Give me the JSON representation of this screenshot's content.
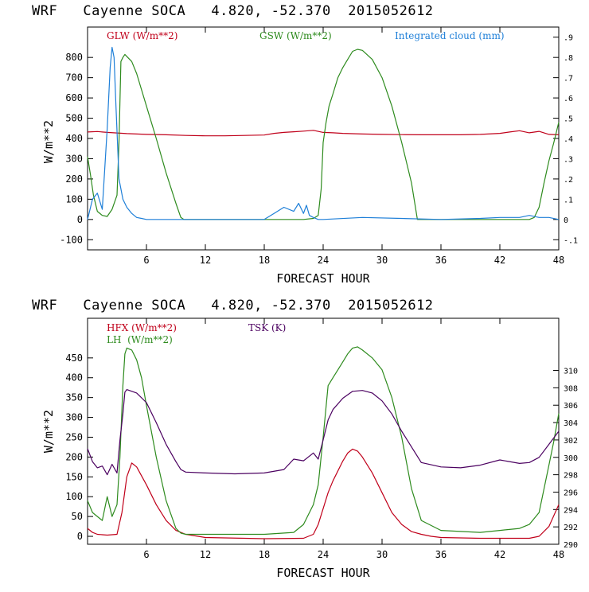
{
  "panels": [
    {
      "title": "WRF   Cayenne SOCA   4.820, -52.370  2015052612",
      "xlabel": "FORECAST HOUR",
      "ylabel": "W/m**2",
      "legend": [
        {
          "label": "GLW (W/m**2)",
          "color": "#c0001a"
        },
        {
          "label": "GSW (W/m**2)",
          "color": "#2e8b1e"
        },
        {
          "label": "Integrated cloud (mm)",
          "color": "#1e7fd8"
        }
      ]
    },
    {
      "title": "WRF   Cayenne SOCA   4.820, -52.370  2015052612",
      "xlabel": "FORECAST HOUR",
      "ylabel": "W/m**2",
      "legend": [
        {
          "label": "HFX (W/m**2)",
          "color": "#c0001a"
        },
        {
          "label": "LH  (W/m**2)",
          "color": "#2e8b1e"
        },
        {
          "label": "TSK (K)",
          "color": "#4b0060"
        }
      ]
    }
  ],
  "chart_data": [
    {
      "type": "line",
      "title": "WRF   Cayenne SOCA   4.820, -52.370  2015052612",
      "xlabel": "FORECAST HOUR",
      "ylabel": "W/m**2",
      "xlim": [
        0,
        48
      ],
      "ylim": [
        -150,
        950
      ],
      "xticks": [
        6,
        12,
        18,
        24,
        30,
        36,
        42,
        48
      ],
      "yticks": [
        -100,
        0,
        100,
        200,
        300,
        400,
        500,
        600,
        700,
        800
      ],
      "y2lim": [
        -0.15,
        0.95
      ],
      "y2ticks": [
        -0.1,
        0,
        0.1,
        0.2,
        0.3,
        0.4,
        0.5,
        0.6,
        0.7,
        0.8,
        0.9
      ],
      "y2ticklabels": [
        "-.1",
        "0",
        ".1",
        ".2",
        ".3",
        ".4",
        ".5",
        ".6",
        ".7",
        ".8",
        ".9"
      ],
      "series": [
        {
          "name": "GLW (W/m**2)",
          "color": "#c0001a",
          "axis": "left",
          "x": [
            0,
            1,
            2,
            3,
            4,
            6,
            8,
            10,
            12,
            14,
            16,
            18,
            19,
            20,
            21,
            22,
            23,
            24,
            25,
            26,
            28,
            30,
            32,
            34,
            36,
            38,
            40,
            42,
            43,
            44,
            45,
            46,
            47,
            48
          ],
          "y": [
            432,
            434,
            430,
            427,
            424,
            420,
            418,
            415,
            413,
            413,
            415,
            417,
            425,
            430,
            433,
            436,
            440,
            430,
            428,
            425,
            422,
            420,
            419,
            418,
            418,
            418,
            420,
            425,
            432,
            438,
            428,
            435,
            420,
            418
          ]
        },
        {
          "name": "GSW (W/m**2)",
          "color": "#2e8b1e",
          "axis": "left",
          "x": [
            0,
            0.3,
            0.6,
            1,
            1.5,
            2,
            2.5,
            3,
            3.2,
            3.4,
            3.6,
            3.8,
            4,
            4.5,
            5,
            6,
            7,
            8,
            9,
            9.5,
            9.8,
            22,
            23,
            23.5,
            23.8,
            24,
            24.3,
            24.6,
            25,
            25.5,
            26,
            26.5,
            27,
            27.5,
            28,
            29,
            30,
            31,
            32,
            33,
            33.6,
            45,
            45.5,
            46,
            46.5,
            47,
            47.5,
            48
          ],
          "y": [
            310,
            220,
            120,
            40,
            20,
            15,
            50,
            120,
            380,
            780,
            800,
            815,
            805,
            780,
            720,
            560,
            400,
            230,
            80,
            10,
            0,
            0,
            5,
            20,
            150,
            380,
            480,
            560,
            620,
            700,
            750,
            790,
            830,
            840,
            835,
            790,
            700,
            560,
            380,
            180,
            0,
            0,
            10,
            60,
            180,
            290,
            380,
            480
          ]
        },
        {
          "name": "Integrated cloud (mm)",
          "color": "#1e7fd8",
          "axis": "right",
          "x": [
            0,
            0.5,
            1,
            1.5,
            2,
            2.3,
            2.5,
            2.7,
            2.9,
            3.2,
            3.6,
            4,
            4.5,
            5,
            5.5,
            6,
            18,
            19,
            20,
            21,
            21.5,
            22,
            22.3,
            22.6,
            23,
            23.5,
            24,
            28,
            36,
            40,
            42,
            44,
            45,
            46,
            47,
            48
          ],
          "y": [
            0,
            0.1,
            0.13,
            0.05,
            0.45,
            0.75,
            0.85,
            0.8,
            0.55,
            0.2,
            0.1,
            0.06,
            0.03,
            0.01,
            0.005,
            0,
            0,
            0.03,
            0.06,
            0.04,
            0.08,
            0.03,
            0.07,
            0.02,
            0.01,
            0,
            0,
            0.01,
            0,
            0.005,
            0.01,
            0.01,
            0.02,
            0.01,
            0.01,
            0
          ]
        }
      ]
    },
    {
      "type": "line",
      "title": "WRF   Cayenne SOCA   4.820, -52.370  2015052612",
      "xlabel": "FORECAST HOUR",
      "ylabel": "W/m**2",
      "xlim": [
        0,
        48
      ],
      "ylim": [
        -20,
        550
      ],
      "xticks": [
        6,
        12,
        18,
        24,
        30,
        36,
        42,
        48
      ],
      "yticks": [
        0,
        50,
        100,
        150,
        200,
        250,
        300,
        350,
        400,
        450
      ],
      "y2lim": [
        290,
        316
      ],
      "y2ticks": [
        290,
        292,
        294,
        296,
        298,
        300,
        302,
        304,
        306,
        308,
        310
      ],
      "series": [
        {
          "name": "HFX (W/m**2)",
          "color": "#c0001a",
          "axis": "left",
          "x": [
            0,
            0.5,
            1,
            2,
            3,
            3.5,
            4,
            4.5,
            5,
            6,
            7,
            8,
            9,
            10,
            12,
            18,
            22,
            23,
            23.5,
            24,
            24.5,
            25,
            26,
            26.5,
            27,
            27.5,
            28,
            29,
            30,
            31,
            32,
            33,
            34,
            35,
            36,
            40,
            44,
            45,
            46,
            47,
            48
          ],
          "y": [
            20,
            10,
            5,
            3,
            5,
            60,
            150,
            185,
            175,
            130,
            80,
            40,
            15,
            5,
            -3,
            -6,
            -5,
            5,
            30,
            70,
            110,
            140,
            190,
            210,
            220,
            215,
            200,
            160,
            110,
            60,
            30,
            12,
            5,
            0,
            -3,
            -5,
            -5,
            -5,
            0,
            25,
            80
          ]
        },
        {
          "name": "LH  (W/m**2)",
          "color": "#2e8b1e",
          "axis": "left",
          "x": [
            0,
            0.5,
            1,
            1.5,
            2,
            2.5,
            3,
            3.3,
            3.6,
            3.8,
            4,
            4.5,
            5,
            5.5,
            6,
            7,
            8,
            9,
            9.5,
            10,
            12,
            18,
            21,
            22,
            23,
            23.5,
            24,
            24.5,
            25,
            25.5,
            26,
            26.5,
            27,
            27.5,
            28,
            29,
            30,
            31,
            32,
            33,
            34,
            36,
            40,
            42,
            44,
            45,
            46,
            46.5,
            47,
            47.5,
            48
          ],
          "y": [
            90,
            60,
            50,
            40,
            100,
            50,
            80,
            200,
            380,
            460,
            475,
            470,
            445,
            400,
            330,
            200,
            90,
            20,
            8,
            5,
            5,
            5,
            10,
            30,
            80,
            130,
            250,
            380,
            400,
            420,
            440,
            460,
            475,
            478,
            470,
            450,
            420,
            350,
            250,
            120,
            40,
            15,
            10,
            15,
            20,
            30,
            60,
            120,
            180,
            240,
            310
          ]
        },
        {
          "name": "TSK (K)",
          "color": "#4b0060",
          "axis": "right",
          "x": [
            0,
            0.5,
            1,
            1.5,
            2,
            2.5,
            3,
            3.3,
            3.6,
            3.8,
            4,
            5,
            6,
            7,
            8,
            9,
            9.5,
            10,
            12,
            15,
            18,
            20,
            21,
            22,
            23,
            23.5,
            24,
            24.5,
            25,
            26,
            27,
            28,
            29,
            30,
            31,
            32,
            33,
            34,
            36,
            38,
            40,
            42,
            44,
            45,
            46,
            47,
            48
          ],
          "y": [
            301,
            299.5,
            298.8,
            299,
            298,
            299.2,
            298.2,
            302,
            305,
            307.5,
            307.8,
            307.4,
            306.3,
            304,
            301.5,
            299.5,
            298.6,
            298.3,
            298.2,
            298.1,
            298.2,
            298.6,
            299.8,
            299.6,
            300.5,
            299.8,
            302,
            304.3,
            305.5,
            306.8,
            307.6,
            307.7,
            307.4,
            306.5,
            305,
            303,
            301.2,
            299.4,
            298.9,
            298.8,
            299.1,
            299.7,
            299.3,
            299.4,
            300,
            301.5,
            303
          ]
        }
      ]
    }
  ]
}
